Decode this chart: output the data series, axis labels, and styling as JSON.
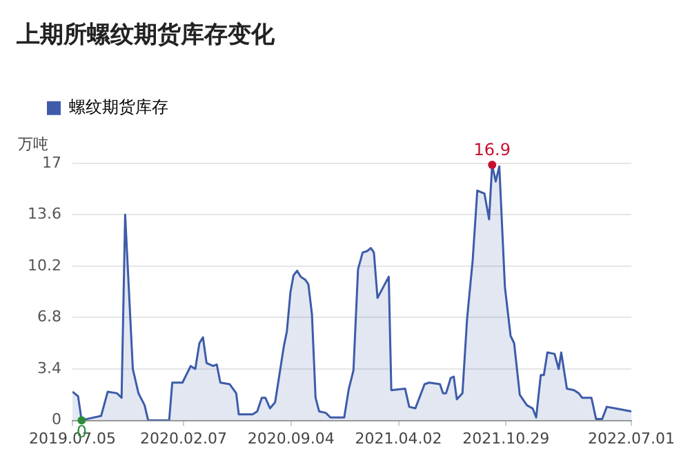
{
  "chart_data": {
    "type": "area",
    "title": "上期所螺纹期货库存变化",
    "ylabel": "万吨",
    "legend": "top left",
    "grid": "y",
    "x": [
      "2019-07-05",
      "2019-07-16",
      "2019-07-23",
      "2019-08-03",
      "2019-08-30",
      "2019-09-12",
      "2019-09-30",
      "2019-10-09",
      "2019-10-16",
      "2019-10-31",
      "2019-11-11",
      "2019-11-23",
      "2019-11-30",
      "2020-01-10",
      "2020-01-16",
      "2020-02-05",
      "2020-02-21",
      "2020-03-01",
      "2020-03-09",
      "2020-03-16",
      "2020-03-23",
      "2020-04-05",
      "2020-04-12",
      "2020-04-19",
      "2020-05-07",
      "2020-05-20",
      "2020-05-25",
      "2020-06-21",
      "2020-06-30",
      "2020-07-09",
      "2020-07-16",
      "2020-07-25",
      "2020-08-04",
      "2020-08-21",
      "2020-08-27",
      "2020-09-03",
      "2020-09-09",
      "2020-09-16",
      "2020-09-23",
      "2020-10-02",
      "2020-10-08",
      "2020-10-15",
      "2020-10-22",
      "2020-10-29",
      "2020-11-11",
      "2020-11-20",
      "2020-12-17",
      "2020-12-26",
      "2021-01-04",
      "2021-01-13",
      "2021-01-22",
      "2021-01-31",
      "2021-02-07",
      "2021-02-13",
      "2021-02-20",
      "2021-03-03",
      "2021-03-14",
      "2021-03-19",
      "2021-04-15",
      "2021-04-23",
      "2021-05-05",
      "2021-05-23",
      "2021-06-01",
      "2021-06-22",
      "2021-06-28",
      "2021-07-04",
      "2021-07-13",
      "2021-07-19",
      "2021-07-25",
      "2021-08-05",
      "2021-08-14",
      "2021-08-25",
      "2021-09-03",
      "2021-09-17",
      "2021-09-26",
      "2021-10-02",
      "2021-10-09",
      "2021-10-16",
      "2021-10-27",
      "2021-11-07",
      "2021-11-14",
      "2021-11-25",
      "2021-12-09",
      "2021-12-20",
      "2021-12-27",
      "2022-01-05",
      "2022-01-11",
      "2022-01-18",
      "2022-02-01",
      "2022-02-09",
      "2022-02-14",
      "2022-02-25",
      "2022-03-11",
      "2022-03-20",
      "2022-03-27",
      "2022-04-14",
      "2022-04-23",
      "2022-05-05",
      "2022-05-14",
      "2022-05-30",
      "2022-07-01"
    ],
    "series": [
      {
        "name": "螺纹期货库存",
        "color": "#3d5ba9",
        "values": [
          1.9,
          1.6,
          0,
          0.1,
          0.3,
          1.9,
          1.8,
          1.5,
          13.6,
          3.4,
          1.8,
          1.0,
          0,
          0,
          2.5,
          2.5,
          3.6,
          3.4,
          5.1,
          5.5,
          3.8,
          3.6,
          3.7,
          2.5,
          2.4,
          1.8,
          0.4,
          0.4,
          0.6,
          1.5,
          1.5,
          0.8,
          1.2,
          4.9,
          5.9,
          8.5,
          9.6,
          9.9,
          9.5,
          9.3,
          9.0,
          7.0,
          1.5,
          0.6,
          0.5,
          0.2,
          0.2,
          2.1,
          3.3,
          10.0,
          11.1,
          11.2,
          11.4,
          11.1,
          8.1,
          8.8,
          9.5,
          2.0,
          2.1,
          0.9,
          0.8,
          2.4,
          2.5,
          2.4,
          1.8,
          1.8,
          2.8,
          2.9,
          1.4,
          1.8,
          6.7,
          10.6,
          15.2,
          15.0,
          13.3,
          16.9,
          15.8,
          16.8,
          8.8,
          5.6,
          5.1,
          1.7,
          1.0,
          0.8,
          0.2,
          3.0,
          3.0,
          4.5,
          4.4,
          3.4,
          4.5,
          2.1,
          2.0,
          1.8,
          1.5,
          1.5,
          0.1,
          0.1,
          0.9,
          0.8,
          0.6
        ]
      }
    ],
    "xlim": [
      "2019-07-05",
      "2022-07-01"
    ],
    "xticks": [
      {
        "value": "2019-07-05",
        "label": "2019.07.05"
      },
      {
        "value": "2020-02-07",
        "label": "2020.02.07"
      },
      {
        "value": "2020-09-04",
        "label": "2020.09.04"
      },
      {
        "value": "2021-04-02",
        "label": "2021.04.02"
      },
      {
        "value": "2021-10-29",
        "label": "2021.10.29"
      },
      {
        "value": "2022-07-01",
        "label": "2022.07.01"
      }
    ],
    "ylim": [
      0,
      17
    ],
    "yticks": [
      0,
      3.4,
      6.8,
      10.2,
      13.6,
      17
    ],
    "annotations": [
      {
        "text": "16.9",
        "x": "2021-10-02",
        "y": 16.9
      },
      {
        "text": "0",
        "x": "2019-07-23",
        "y": 0
      }
    ]
  }
}
